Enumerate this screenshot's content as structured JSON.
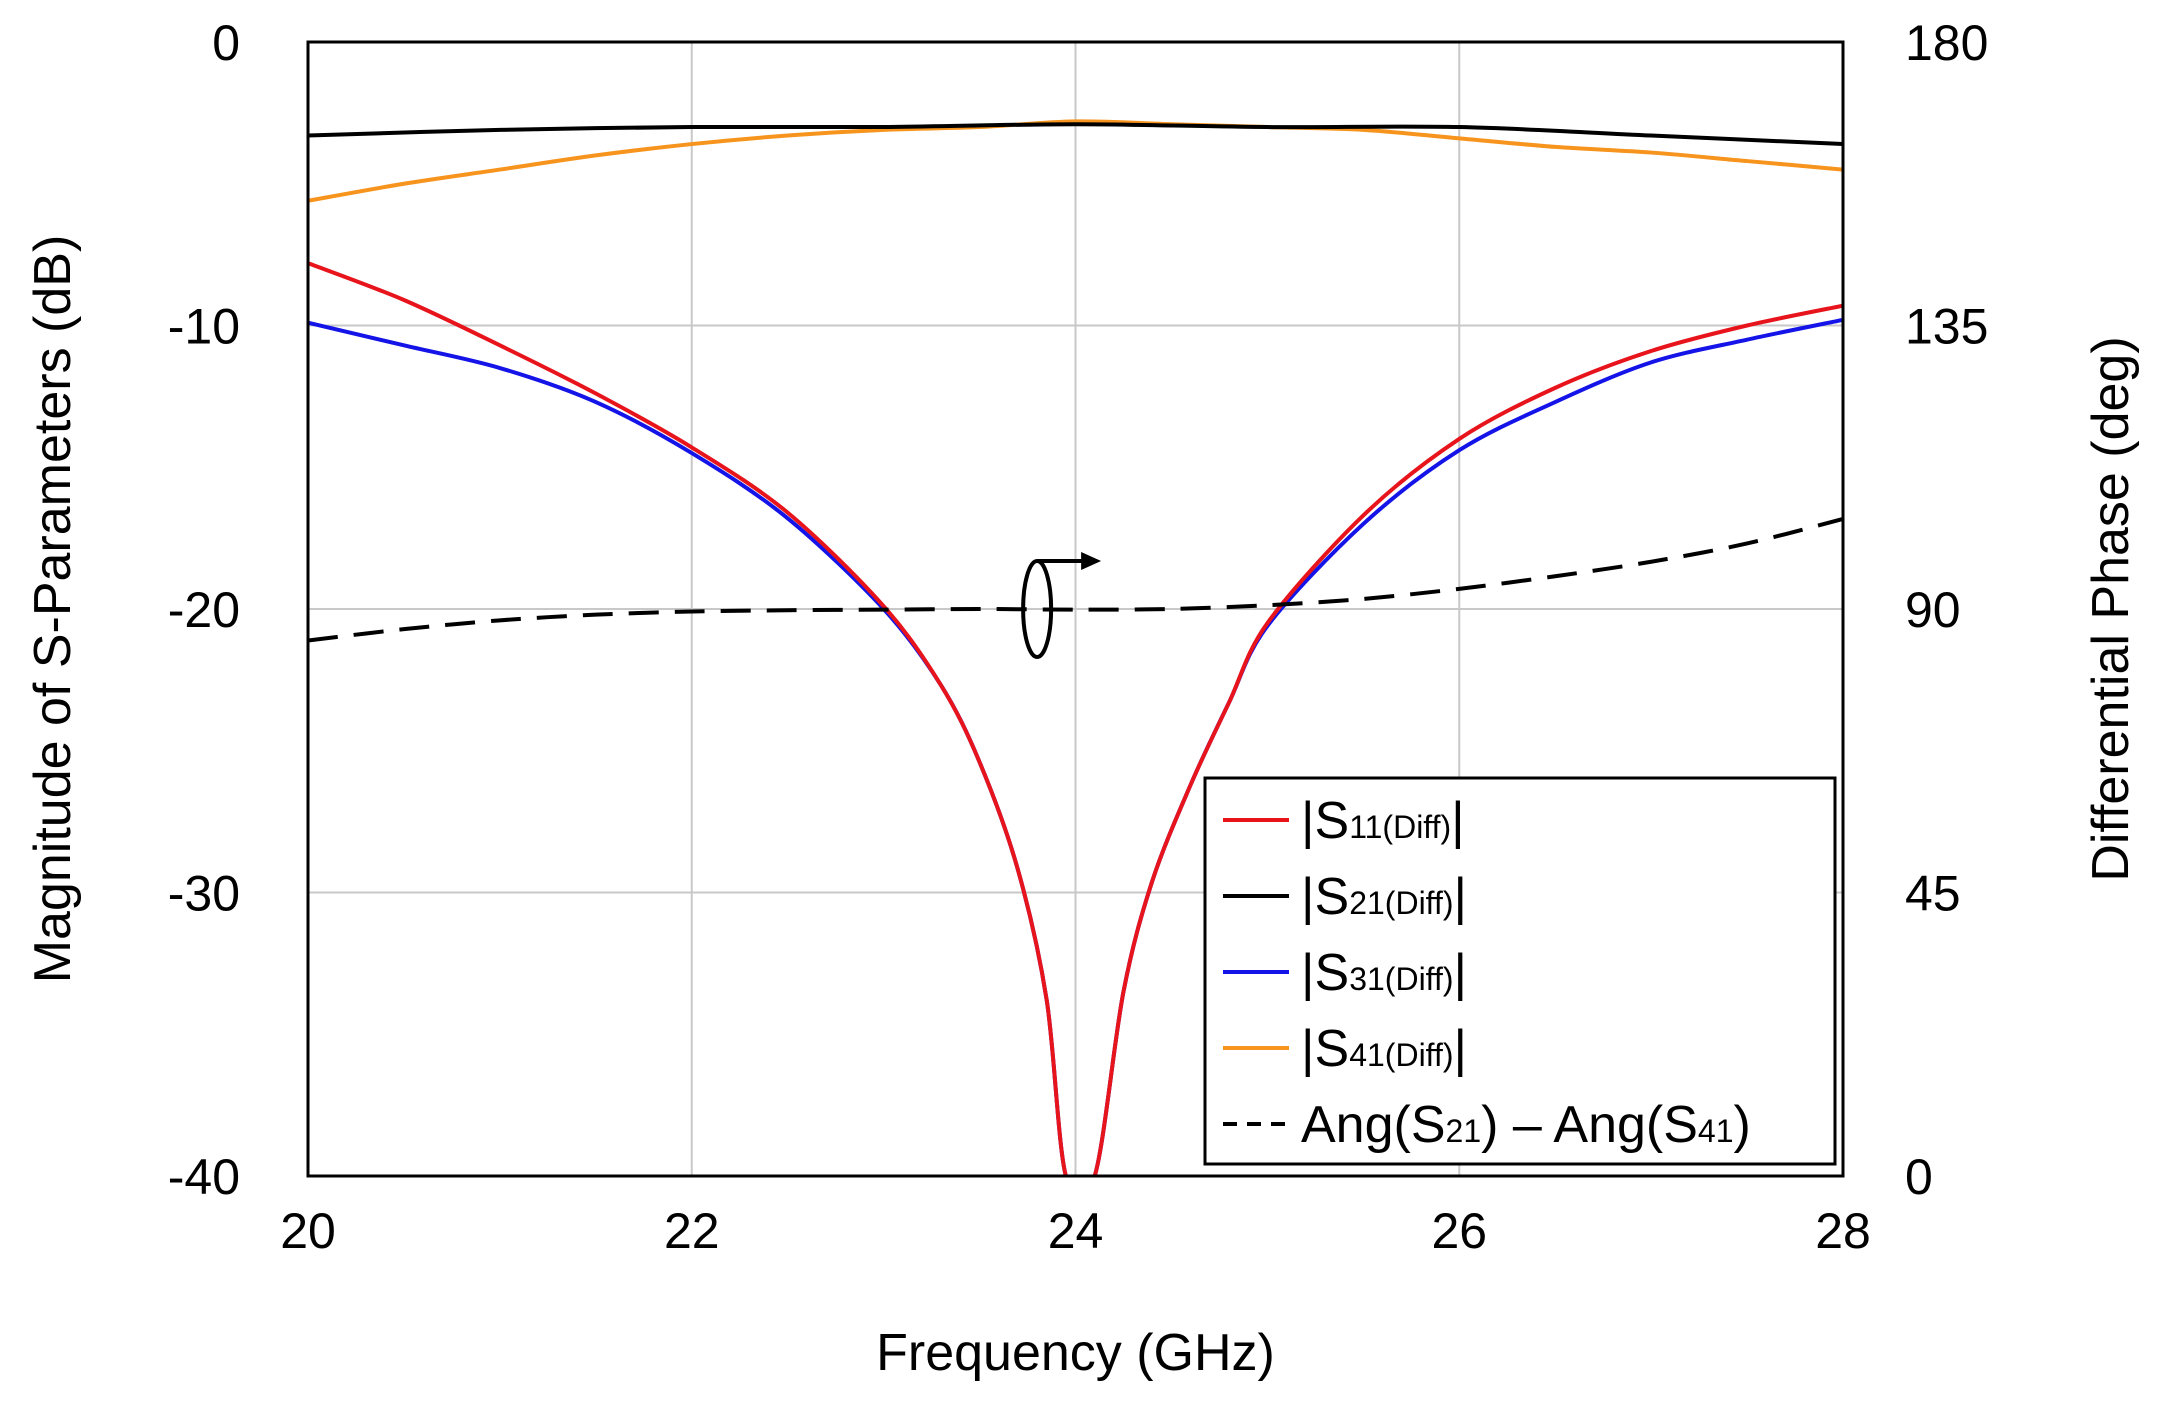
{
  "chart_data": {
    "type": "line",
    "xlabel": "Frequency (GHz)",
    "ylabel": "Magnitude of S-Parameters (dB)",
    "y2label": "Differential Phase (deg)",
    "xlim": [
      20,
      28
    ],
    "ylim": [
      -40,
      0
    ],
    "y2lim": [
      0,
      180
    ],
    "xticks": [
      "20",
      "22",
      "24",
      "26",
      "28"
    ],
    "yticks": [
      "0",
      "-10",
      "-20",
      "-30",
      "-40"
    ],
    "y2ticks": [
      "180",
      "135",
      "90",
      "45",
      "0"
    ],
    "grid": true,
    "legend_position": "bottom-right",
    "series": [
      {
        "name": "|S11(Diff)|",
        "label_main": "|S",
        "label_sub": "11(Diff)",
        "label_end": "|",
        "color": "#e8141c",
        "dash": "solid",
        "axis": "left",
        "x": [
          20,
          20.5,
          21,
          21.5,
          22,
          22.5,
          23,
          23.3,
          23.5,
          23.7,
          23.85,
          23.95,
          24.1,
          24.25,
          24.4,
          24.6,
          24.8,
          25,
          25.5,
          26,
          26.5,
          27,
          27.5,
          28
        ],
        "y": [
          -7.8,
          -9.1,
          -10.7,
          -12.4,
          -14.3,
          -16.6,
          -19.9,
          -22.7,
          -25.4,
          -29.2,
          -33.8,
          -40,
          -40,
          -33.5,
          -29.6,
          -26.2,
          -23.3,
          -20.5,
          -16.7,
          -14.0,
          -12.2,
          -10.9,
          -10.0,
          -9.3
        ]
      },
      {
        "name": "|S21(Diff)|",
        "label_main": "|S",
        "label_sub": "21(Diff)",
        "label_end": "|",
        "color": "#000000",
        "dash": "solid",
        "axis": "left",
        "x": [
          20,
          21,
          22,
          23,
          24,
          25,
          26,
          27,
          28
        ],
        "y": [
          -3.3,
          -3.1,
          -3.0,
          -3.0,
          -2.9,
          -3.0,
          -3.0,
          -3.3,
          -3.6
        ]
      },
      {
        "name": "|S31(Diff)|",
        "label_main": "|S",
        "label_sub": "31(Diff)",
        "label_end": "|",
        "color": "#1414e8",
        "dash": "solid",
        "axis": "left",
        "x": [
          20,
          20.5,
          21,
          21.5,
          22,
          22.5,
          23,
          23.3,
          23.5,
          23.7,
          23.85,
          23.95,
          24.1,
          24.25,
          24.4,
          24.6,
          24.8,
          25,
          25.5,
          26,
          26.5,
          27,
          27.5,
          28
        ],
        "y": [
          -9.9,
          -10.7,
          -11.5,
          -12.7,
          -14.5,
          -16.8,
          -20.0,
          -22.7,
          -25.4,
          -29.2,
          -33.8,
          -40,
          -40,
          -33.5,
          -29.6,
          -26.2,
          -23.3,
          -20.6,
          -17.0,
          -14.4,
          -12.7,
          -11.3,
          -10.5,
          -9.8
        ]
      },
      {
        "name": "|S41(Diff)|",
        "label_main": "|S",
        "label_sub": "41(Diff)",
        "label_end": "|",
        "color": "#f7941d",
        "dash": "solid",
        "axis": "left",
        "x": [
          20,
          20.5,
          21,
          21.5,
          22,
          22.5,
          23,
          23.5,
          24,
          24.5,
          25,
          25.5,
          26,
          26.5,
          27,
          27.5,
          28
        ],
        "y": [
          -5.6,
          -5.0,
          -4.5,
          -4.0,
          -3.6,
          -3.3,
          -3.1,
          -3.0,
          -2.8,
          -2.9,
          -3.0,
          -3.1,
          -3.4,
          -3.7,
          -3.9,
          -4.2,
          -4.5
        ]
      },
      {
        "name": "Ang(S21) – Ang(S41)",
        "label_main": "Ang(S",
        "label_sub": "21",
        "label_mid": ") – Ang(S",
        "label_sub2": "41",
        "label_end": ")",
        "color": "#000000",
        "dash": "dashed",
        "axis": "right",
        "x": [
          20,
          20.5,
          21,
          21.5,
          22,
          22.5,
          23,
          23.5,
          24,
          24.5,
          25,
          25.5,
          26,
          26.5,
          27,
          27.5,
          28
        ],
        "y": [
          85.0,
          86.8,
          88.2,
          89.1,
          89.6,
          89.8,
          89.9,
          90.0,
          89.9,
          90.0,
          90.6,
          91.6,
          93.2,
          95.2,
          97.5,
          100.4,
          104.3
        ]
      }
    ]
  }
}
